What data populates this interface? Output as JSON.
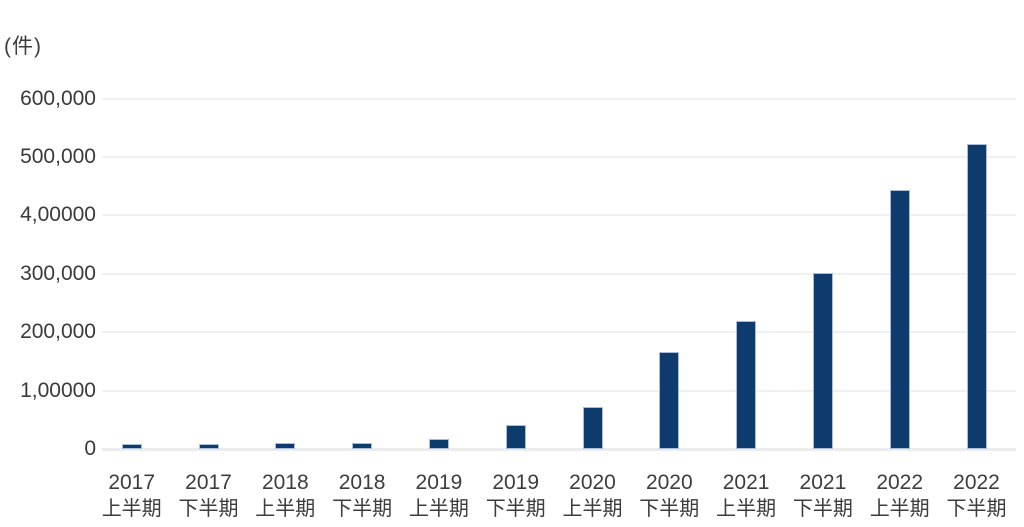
{
  "chart_data": {
    "type": "bar",
    "unit_label": "(件)",
    "categories": [
      {
        "year": "2017",
        "half": "上半期"
      },
      {
        "year": "2017",
        "half": "下半期"
      },
      {
        "year": "2018",
        "half": "上半期"
      },
      {
        "year": "2018",
        "half": "下半期"
      },
      {
        "year": "2019",
        "half": "上半期"
      },
      {
        "year": "2019",
        "half": "下半期"
      },
      {
        "year": "2020",
        "half": "上半期"
      },
      {
        "year": "2020",
        "half": "下半期"
      },
      {
        "year": "2021",
        "half": "上半期"
      },
      {
        "year": "2021",
        "half": "下半期"
      },
      {
        "year": "2022",
        "half": "上半期"
      },
      {
        "year": "2022",
        "half": "下半期"
      }
    ],
    "values": [
      8000,
      8000,
      11000,
      10000,
      17000,
      41000,
      72000,
      166000,
      220000,
      302000,
      444000,
      522000
    ],
    "y_axis": {
      "ticks": [
        {
          "label": "600,000",
          "value": 600000
        },
        {
          "label": "500,000",
          "value": 500000
        },
        {
          "label": "4,00000",
          "value": 400000
        },
        {
          "label": "300,000",
          "value": 300000
        },
        {
          "label": "200,000",
          "value": 200000
        },
        {
          "label": "1,00000",
          "value": 100000
        },
        {
          "label": "0",
          "value": 0
        }
      ]
    },
    "ylim": [
      0,
      600000
    ],
    "grid": true,
    "legend": "none",
    "colors": {
      "bar_fill": "#0d3b6e",
      "bar_border": "#a9bdd8",
      "gridline": "#f0f0f0",
      "baseline": "#ececec",
      "text": "#3d3d3d",
      "background": "#ffffff"
    }
  }
}
